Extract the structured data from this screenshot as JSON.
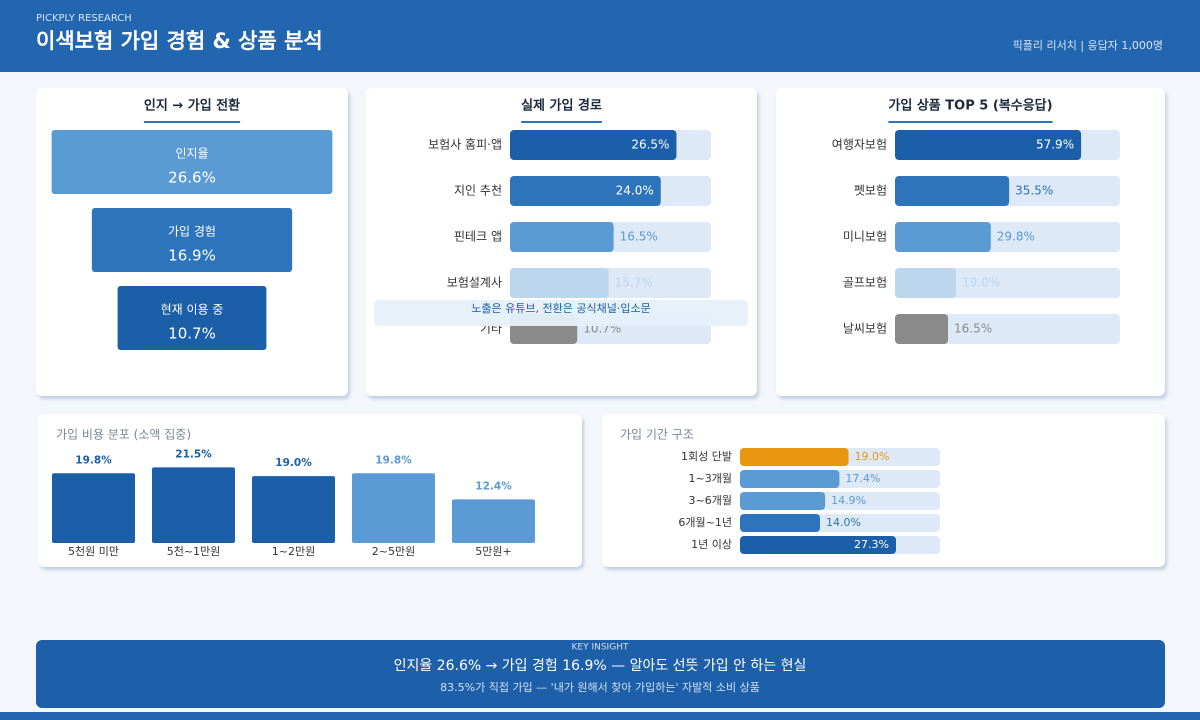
{
  "header": {
    "kicker": "PICKPLY RESEARCH",
    "title": "이색보험 가입 경험 & 상품 분석",
    "meta": "픽플리 리서치 | 응답자 1,000명"
  },
  "chart_data": [
    {
      "type": "funnel",
      "title": "인지 → 가입 전환",
      "categories": [
        "인지율",
        "가입 경험",
        "현재 이용 중"
      ],
      "values": [
        26.6,
        16.9,
        10.7
      ],
      "value_labels": [
        "26.6%",
        "16.9%",
        "10.7%"
      ],
      "colors": [
        "#5b9bd5",
        "#2e74bb",
        "#1a5fa8"
      ]
    },
    {
      "type": "hbar",
      "title": "실제 가입 경로",
      "categories": [
        "보험사 홈피·앱",
        "지인 추천",
        "핀테크 앱",
        "보험설계사",
        "기타"
      ],
      "values": [
        26.5,
        24.0,
        16.5,
        15.7,
        10.7
      ],
      "value_labels": [
        "26.5%",
        "24.0%",
        "16.5%",
        "15.7%",
        "10.7%"
      ],
      "colors": [
        "#1a5fa8",
        "#2e74bb",
        "#5b9bd5",
        "#bcd6ee",
        "#8a8a8a"
      ],
      "xlim": [
        0,
        32
      ],
      "annotation": "노출은 유튜브, 전환은 공식채널·입소문"
    },
    {
      "type": "hbar",
      "title": "가입 상품 TOP 5 (복수응답)",
      "categories": [
        "여행자보험",
        "펫보험",
        "미니보험",
        "골프보험",
        "날씨보험"
      ],
      "values": [
        57.9,
        35.5,
        29.8,
        19.0,
        16.5
      ],
      "value_labels": [
        "57.9%",
        "35.5%",
        "29.8%",
        "19.0%",
        "16.5%"
      ],
      "colors": [
        "#1a5fa8",
        "#2e74bb",
        "#5b9bd5",
        "#bcd6ee",
        "#8a8a8a"
      ],
      "xlim": [
        0,
        70
      ]
    },
    {
      "type": "bar",
      "title": "가입 비용 분포 (소액 집중)",
      "categories": [
        "5천원 미만",
        "5천~1만원",
        "1~2만원",
        "2~5만원",
        "5만원+"
      ],
      "values": [
        19.8,
        21.5,
        19.0,
        19.8,
        12.4
      ],
      "value_labels": [
        "19.8%",
        "21.5%",
        "19.0%",
        "19.8%",
        "12.4%"
      ],
      "colors": [
        "#1a5fa8",
        "#1a5fa8",
        "#1a5fa8",
        "#5b9bd5",
        "#5b9bd5"
      ],
      "ylim": [
        0,
        25
      ]
    },
    {
      "type": "hbar",
      "title": "가입 기간 구조",
      "categories": [
        "1회성 단발",
        "1~3개월",
        "3~6개월",
        "6개월~1년",
        "1년 이상"
      ],
      "values": [
        19.0,
        17.4,
        14.9,
        14.0,
        27.3
      ],
      "value_labels": [
        "19.0%",
        "17.4%",
        "14.9%",
        "14.0%",
        "27.3%"
      ],
      "colors": [
        "#e8960f",
        "#5b9bd5",
        "#5b9bd5",
        "#2e74bb",
        "#1a5fa8"
      ],
      "xlim": [
        0,
        35
      ]
    }
  ],
  "insight": {
    "kicker": "KEY INSIGHT",
    "headline": "인지율 26.6% → 가입 경험 16.9% — 알아도 선뜻 가입 안 하는 현실",
    "sub": "83.5%가 직접 가입 — '내가 원해서 찾아 가입하는' 자발적 소비 상품"
  }
}
